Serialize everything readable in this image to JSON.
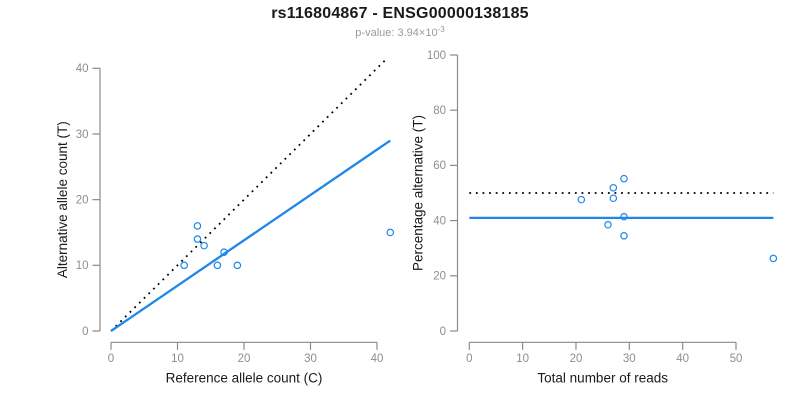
{
  "header": {
    "title": "rs116804867 - ENSG00000138185",
    "subtitle_prefix": "p-value: 3.94×10",
    "subtitle_exponent": "-3"
  },
  "colors": {
    "accent_blue": "#1E87E8",
    "dotted_black": "#000000",
    "axis_gray": "#8a8a8a",
    "tick_label_gray": "#8e8e8e",
    "axis_title_black": "#1a1a1a"
  },
  "chart_data": [
    {
      "id": "left",
      "type": "scatter",
      "xlabel": "Reference allele count (C)",
      "ylabel": "Alternative allele count (T)",
      "xlim": [
        0,
        42
      ],
      "ylim": [
        0,
        42
      ],
      "xticks": [
        0,
        10,
        20,
        30,
        40
      ],
      "yticks": [
        0,
        10,
        20,
        30,
        40
      ],
      "grid": false,
      "points": [
        [
          11,
          10
        ],
        [
          13,
          14
        ],
        [
          13,
          16
        ],
        [
          14,
          13
        ],
        [
          16,
          10
        ],
        [
          17,
          12
        ],
        [
          19,
          10
        ],
        [
          42,
          15
        ]
      ],
      "lines": [
        {
          "name": "identity-line",
          "style": "dotted",
          "color": "dotted_black",
          "x1": 0,
          "y1": 0,
          "x2": 41.6,
          "y2": 41.6
        },
        {
          "name": "fit-line",
          "style": "solid",
          "color": "accent_blue",
          "x1": 0,
          "y1": 0,
          "x2": 42,
          "y2": 29
        }
      ]
    },
    {
      "id": "right",
      "type": "scatter",
      "xlabel": "Total number of reads",
      "ylabel": "Percentage alternative (T)",
      "xlim": [
        0,
        57
      ],
      "ylim": [
        0,
        100
      ],
      "xticks": [
        0,
        10,
        20,
        30,
        40,
        50
      ],
      "yticks": [
        0,
        20,
        40,
        60,
        80,
        100
      ],
      "grid": false,
      "points": [
        [
          21,
          47.6
        ],
        [
          27,
          51.9
        ],
        [
          27,
          48.1
        ],
        [
          26,
          38.5
        ],
        [
          29,
          55.2
        ],
        [
          29,
          41.4
        ],
        [
          29,
          34.5
        ],
        [
          57,
          26.3
        ]
      ],
      "lines": [
        {
          "name": "expected-50pct-line",
          "style": "dotted",
          "color": "dotted_black",
          "x1": 0,
          "y1": 50,
          "x2": 57,
          "y2": 50
        },
        {
          "name": "fit-line",
          "style": "solid",
          "color": "accent_blue",
          "x1": 0,
          "y1": 41,
          "x2": 57,
          "y2": 41
        }
      ]
    }
  ]
}
